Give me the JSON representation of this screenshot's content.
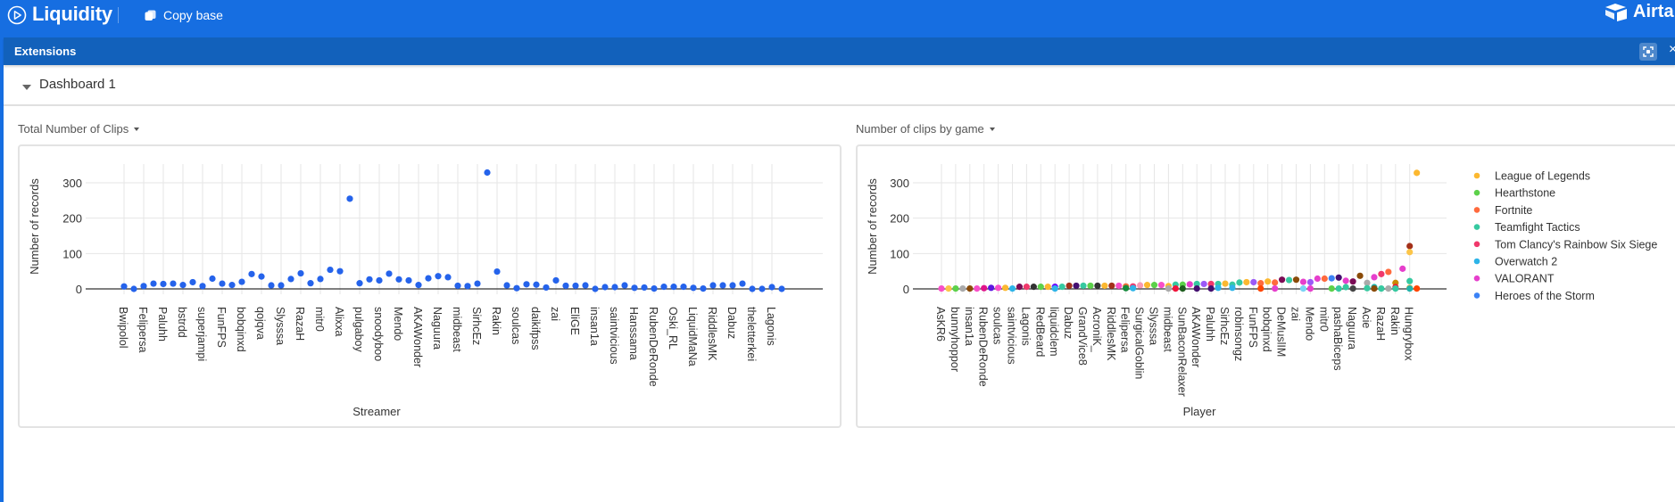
{
  "topbar": {
    "app_title": "Liquidity",
    "copy_base_label": "Copy base",
    "brand": "Airtable"
  },
  "extensions_bar": {
    "title": "Extensions",
    "close_label": "×"
  },
  "dashboard": {
    "title": "Dashboard 1"
  },
  "colors": {
    "topbar": "#166ee1",
    "extensions_bar": "#1261bb",
    "series_blue": "#2563eb"
  },
  "chart_data": [
    {
      "type": "scatter",
      "title": "Total Number of Clips",
      "xlabel": "Streamer",
      "ylabel": "Number of records",
      "ylim": [
        0,
        350
      ],
      "yticks": [
        0,
        100,
        200,
        300
      ],
      "grid": true,
      "legend": "none",
      "color": "#2563eb",
      "tick_labels": [
        "Bwipolol",
        "Felipersa",
        "Paluhh",
        "bstrdd",
        "superjampi",
        "FunFPS",
        "bobqinxd",
        "qojqva",
        "Slysssa",
        "RazaH",
        "mitr0",
        "Alixxa",
        "pulgaboy",
        "snoodyboo",
        "Mendo",
        "AKAWonder",
        "Naguura",
        "midbeast",
        "SirhcEz",
        "Rakin",
        "soulcas",
        "daikifpss",
        "zai",
        "EliGE",
        "insan1a",
        "saintvicious",
        "Hanssama",
        "RubenDeRonde",
        "Oski_RL",
        "LiquidMaNa",
        "RiddlesMK",
        "Dabuz",
        "theletterkei",
        "Lagonis"
      ],
      "values": [
        7,
        0,
        8,
        15,
        14,
        15,
        11,
        19,
        8,
        29,
        15,
        11,
        20,
        42,
        35,
        10,
        10,
        28,
        44,
        16,
        28,
        54,
        50,
        255,
        16,
        27,
        24,
        43,
        27,
        24,
        11,
        30,
        36,
        33,
        9,
        8,
        15,
        329,
        49,
        10,
        2,
        13,
        12,
        4,
        24,
        9,
        9,
        10,
        0,
        5,
        5,
        10,
        3,
        4,
        1,
        6,
        6,
        6,
        3,
        1,
        10,
        10,
        10,
        15,
        0,
        0,
        5,
        0
      ]
    },
    {
      "type": "scatter",
      "title": "Number of clips by game",
      "xlabel": "Player",
      "ylabel": "Number of records",
      "ylim": [
        0,
        350
      ],
      "yticks": [
        0,
        100,
        200,
        300
      ],
      "grid": true,
      "legend": "right",
      "tick_labels": [
        "AsKR6",
        "bunnyhoppor",
        "insan1a",
        "RubenDeRonde",
        "soulcas",
        "saintvicious",
        "Lagonis",
        "RedBeard",
        "liquidclem",
        "Dabuz",
        "GrandVice8",
        "AcroniK_",
        "RiddlesMK",
        "Felipersa",
        "SurgicalGoblin",
        "Slysssa",
        "midbeast",
        "SunBaconRelaxer",
        "AKAWonder",
        "Paluhh",
        "SirhcEz",
        "robinsongz",
        "FunFPS",
        "bobqinxd",
        "DeMuslIM",
        "zai",
        "Mendo",
        "mitr0",
        "pashaBiceps",
        "Naguura",
        "Acie",
        "RazaH",
        "Rakin",
        "Hungrybox"
      ],
      "series": [
        {
          "name": "League of Legends",
          "color": "#fcb830"
        },
        {
          "name": "Hearthstone",
          "color": "#5cd14a"
        },
        {
          "name": "Fortnite",
          "color": "#ff6a3d"
        },
        {
          "name": "Teamfight Tactics",
          "color": "#36c9a0"
        },
        {
          "name": "Tom Clancy's Rainbow Six Siege",
          "color": "#f0386b"
        },
        {
          "name": "Overwatch 2",
          "color": "#2db4e8"
        },
        {
          "name": "VALORANT",
          "color": "#e63fcc"
        },
        {
          "name": "Heroes of the Storm",
          "color": "#3b82f6"
        }
      ],
      "points": [
        [
          0,
          1,
          "#f84fc8"
        ],
        [
          1,
          1,
          "#fcc549"
        ],
        [
          2,
          1,
          "#5cd14a"
        ],
        [
          3,
          1,
          "#aaaaaa"
        ],
        [
          4,
          1,
          "#8a4b08"
        ],
        [
          5,
          1,
          "#f84fc8"
        ],
        [
          6,
          2,
          "#e0138a"
        ],
        [
          7,
          3,
          "#5b16e0"
        ],
        [
          8,
          3,
          "#f84fc8"
        ],
        [
          9,
          3,
          "#fcb830"
        ],
        [
          10,
          1,
          "#2db4e8"
        ],
        [
          11,
          6,
          "#7b0c55"
        ],
        [
          12,
          6,
          "#f0386b"
        ],
        [
          13,
          6,
          "#333333"
        ],
        [
          14,
          6,
          "#5cd14a"
        ],
        [
          15,
          6,
          "#fcb830"
        ],
        [
          16,
          6,
          "#6a00ff"
        ],
        [
          16,
          1,
          "#2db4e8"
        ],
        [
          17,
          6,
          "#36c9a0"
        ],
        [
          18,
          9,
          "#a3301a"
        ],
        [
          19,
          9,
          "#440f70"
        ],
        [
          20,
          9,
          "#36c9a0"
        ],
        [
          21,
          9,
          "#5cd14a"
        ],
        [
          22,
          9,
          "#333333"
        ],
        [
          23,
          9,
          "#fcb830"
        ],
        [
          24,
          9,
          "#a3301a"
        ],
        [
          25,
          9,
          "#f84fc8"
        ],
        [
          26,
          7,
          "#f06d3a"
        ],
        [
          26,
          2,
          "#138a3b"
        ],
        [
          27,
          7,
          "#f0386b"
        ],
        [
          27,
          2,
          "#2db4e8"
        ],
        [
          28,
          10,
          "#f89ab5"
        ],
        [
          29,
          11,
          "#fcb830"
        ],
        [
          30,
          11,
          "#5cd14a"
        ],
        [
          31,
          11,
          "#f84fc8"
        ],
        [
          32,
          8,
          "#fcb830"
        ],
        [
          32,
          1,
          "#aaaaaa"
        ],
        [
          33,
          12,
          "#36c9a0"
        ],
        [
          33,
          1,
          "#f0143b"
        ],
        [
          34,
          12,
          "#5cd14a"
        ],
        [
          34,
          1,
          "#1e5e1e"
        ],
        [
          35,
          13,
          "#e63fcc"
        ],
        [
          36,
          14,
          "#36c9a0"
        ],
        [
          36,
          1,
          "#440f70"
        ],
        [
          37,
          14,
          "#9b59f7"
        ],
        [
          38,
          14,
          "#f0386b"
        ],
        [
          38,
          1,
          "#440f70"
        ],
        [
          39,
          14,
          "#36c9a0"
        ],
        [
          39,
          3,
          "#2db4e8"
        ],
        [
          40,
          15,
          "#fcb830"
        ],
        [
          41,
          12,
          "#36c9a0"
        ],
        [
          41,
          3,
          "#2db4e8"
        ],
        [
          42,
          18,
          "#36c9a0"
        ],
        [
          43,
          19,
          "#fcb830"
        ],
        [
          44,
          19,
          "#9b59f7"
        ],
        [
          45,
          16,
          "#ff6a3d"
        ],
        [
          45,
          1,
          "#ff4500"
        ],
        [
          46,
          21,
          "#fcb830"
        ],
        [
          47,
          18,
          "#ff6a3d"
        ],
        [
          47,
          1,
          "#e63fcc"
        ],
        [
          48,
          26,
          "#7b0c55"
        ],
        [
          49,
          25,
          "#36c9a0"
        ],
        [
          50,
          26,
          "#8a4b08"
        ],
        [
          51,
          20,
          "#e63fcc"
        ],
        [
          51,
          1,
          "#7ad3f5"
        ],
        [
          52,
          19,
          "#9b59f7"
        ],
        [
          52,
          1,
          "#e63fcc"
        ],
        [
          53,
          29,
          "#e63fcc"
        ],
        [
          54,
          29,
          "#ff6a3d"
        ],
        [
          55,
          30,
          "#3b82f6"
        ],
        [
          55,
          1,
          "#5cd14a"
        ],
        [
          56,
          32,
          "#440f70"
        ],
        [
          56,
          1,
          "#36c9a0"
        ],
        [
          57,
          23,
          "#e63fcc"
        ],
        [
          57,
          5,
          "#36c9a0"
        ],
        [
          58,
          21,
          "#7b0c55"
        ],
        [
          58,
          1,
          "#444444"
        ],
        [
          59,
          37,
          "#8a4b08"
        ],
        [
          60,
          17,
          "#aaaaaa"
        ],
        [
          60,
          2,
          "#36c9a0"
        ],
        [
          61,
          33,
          "#e63fcc"
        ],
        [
          61,
          5,
          "#20b2aa"
        ],
        [
          61,
          1,
          "#8a4b08"
        ],
        [
          62,
          42,
          "#f0386b"
        ],
        [
          62,
          1,
          "#36c9a0"
        ],
        [
          63,
          48,
          "#ff6a3d"
        ],
        [
          63,
          1,
          "#aaaaaa"
        ],
        [
          64,
          17,
          "#c98a00"
        ],
        [
          64,
          5,
          "#f0143b"
        ],
        [
          64,
          1,
          "#36c9a0"
        ],
        [
          65,
          57,
          "#e63fcc"
        ],
        [
          66,
          121,
          "#a3301a"
        ],
        [
          66,
          104,
          "#fcc549"
        ],
        [
          66,
          22,
          "#36c9a0"
        ],
        [
          66,
          3,
          "#fcb830"
        ],
        [
          66,
          1,
          "#20b2aa"
        ],
        [
          67,
          328,
          "#fcb830"
        ],
        [
          67,
          1,
          "#ff4500"
        ]
      ]
    }
  ]
}
